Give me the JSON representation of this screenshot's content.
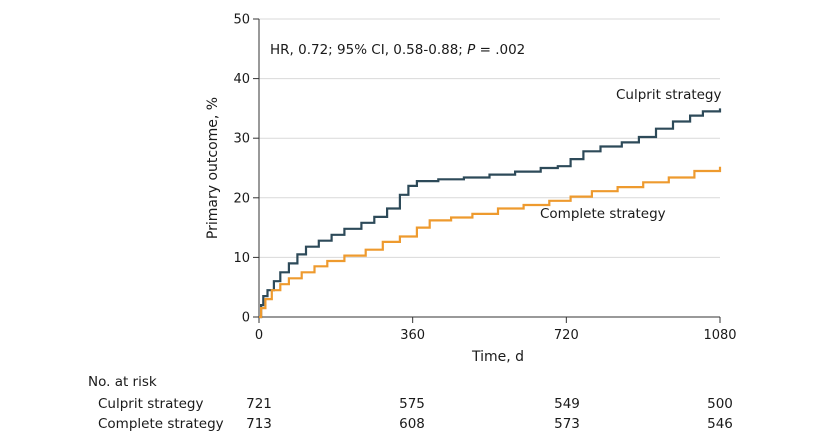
{
  "chart_data": {
    "type": "line",
    "step": true,
    "ylabel": "Primary outcome, %",
    "xlabel": "Time, d",
    "ylim": [
      0,
      50
    ],
    "xlim": [
      0,
      1080
    ],
    "x_ticks": [
      0,
      360,
      720,
      1080
    ],
    "y_ticks": [
      0,
      10,
      20,
      30,
      40,
      50
    ],
    "annotation": {
      "prefix": "HR, 0.72; 95% CI, 0.58-0.88; ",
      "p_label": "P",
      "suffix": " = .002"
    },
    "series": [
      {
        "name": "Culprit strategy",
        "color": "#2d4a59",
        "points": [
          [
            0,
            0
          ],
          [
            5,
            2
          ],
          [
            10,
            3.5
          ],
          [
            20,
            4.5
          ],
          [
            35,
            6
          ],
          [
            50,
            7.5
          ],
          [
            70,
            9
          ],
          [
            90,
            10.5
          ],
          [
            110,
            11.8
          ],
          [
            140,
            12.8
          ],
          [
            170,
            13.8
          ],
          [
            200,
            14.8
          ],
          [
            240,
            15.8
          ],
          [
            270,
            16.8
          ],
          [
            300,
            18.2
          ],
          [
            330,
            20.5
          ],
          [
            350,
            22
          ],
          [
            370,
            22.8
          ],
          [
            420,
            23.1
          ],
          [
            480,
            23.4
          ],
          [
            540,
            23.9
          ],
          [
            600,
            24.4
          ],
          [
            660,
            25
          ],
          [
            700,
            25.3
          ],
          [
            730,
            26.5
          ],
          [
            760,
            27.8
          ],
          [
            800,
            28.6
          ],
          [
            850,
            29.3
          ],
          [
            890,
            30.2
          ],
          [
            930,
            31.6
          ],
          [
            970,
            32.8
          ],
          [
            1010,
            33.8
          ],
          [
            1040,
            34.5
          ],
          [
            1080,
            35
          ]
        ]
      },
      {
        "name": "Complete strategy",
        "color": "#ee9a2e",
        "points": [
          [
            0,
            0
          ],
          [
            5,
            1.5
          ],
          [
            15,
            3
          ],
          [
            30,
            4.5
          ],
          [
            50,
            5.5
          ],
          [
            70,
            6.5
          ],
          [
            100,
            7.5
          ],
          [
            130,
            8.5
          ],
          [
            160,
            9.4
          ],
          [
            200,
            10.3
          ],
          [
            250,
            11.3
          ],
          [
            290,
            12.6
          ],
          [
            330,
            13.5
          ],
          [
            370,
            15
          ],
          [
            400,
            16.2
          ],
          [
            450,
            16.7
          ],
          [
            500,
            17.3
          ],
          [
            560,
            18.2
          ],
          [
            620,
            18.8
          ],
          [
            680,
            19.5
          ],
          [
            730,
            20.2
          ],
          [
            780,
            21.1
          ],
          [
            840,
            21.8
          ],
          [
            900,
            22.6
          ],
          [
            960,
            23.4
          ],
          [
            1020,
            24.5
          ],
          [
            1080,
            25.2
          ]
        ]
      }
    ]
  },
  "risk_table": {
    "header": "No. at risk",
    "rows": [
      {
        "label": "Culprit strategy",
        "values": [
          "721",
          "575",
          "549",
          "500"
        ]
      },
      {
        "label": "Complete strategy",
        "values": [
          "713",
          "608",
          "573",
          "546"
        ]
      }
    ]
  }
}
